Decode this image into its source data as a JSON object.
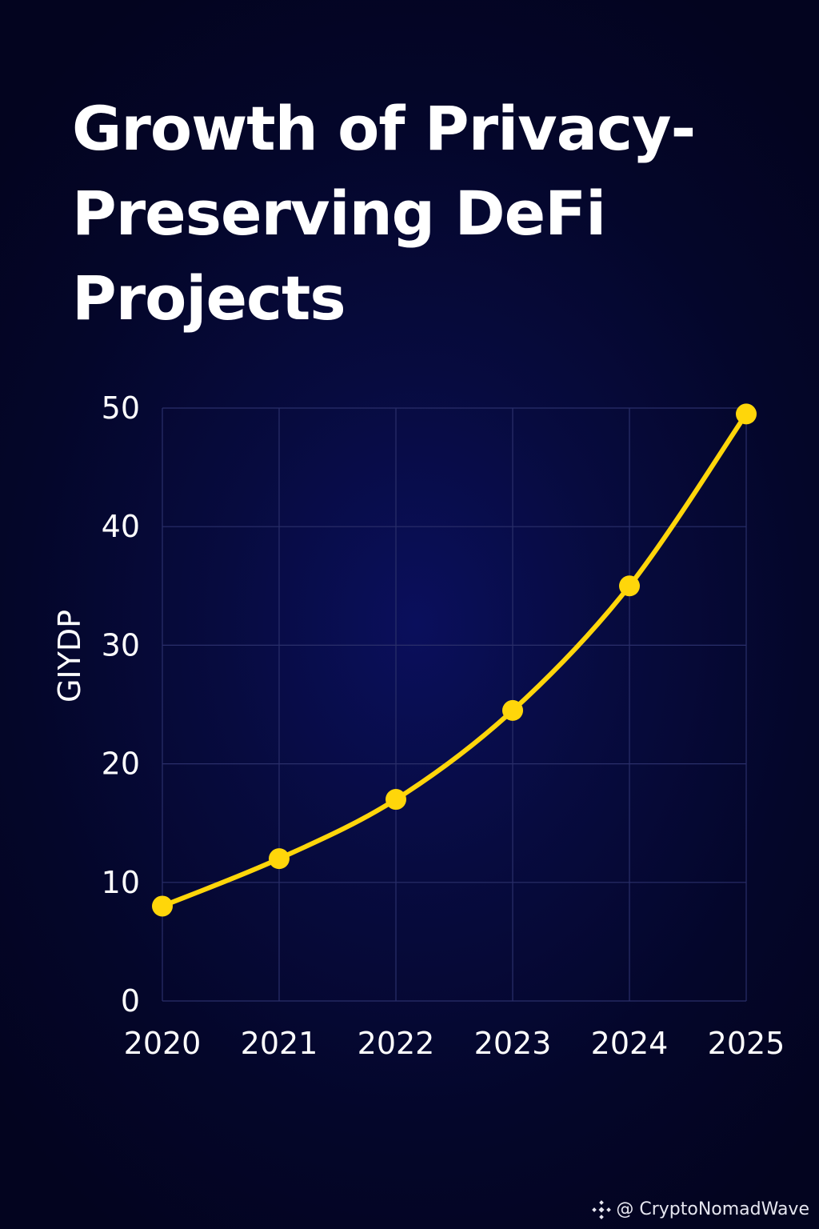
{
  "chart_data": {
    "type": "line",
    "title": "Growth of Privacy-Preserving DeFi Projects",
    "ylabel": "GIΥDP",
    "x": [
      "2020",
      "2021",
      "2022",
      "2023",
      "2024",
      "2025"
    ],
    "series": [
      {
        "values": [
          8,
          12,
          17,
          24.5,
          35,
          49.5
        ]
      }
    ],
    "yticks": [
      "0",
      "10",
      "20",
      "30",
      "40",
      "50"
    ],
    "ylim": [
      0,
      50
    ],
    "grid": true,
    "legend": "none"
  },
  "colors": {
    "line": "#ffd60a",
    "grid": "#2a2f6a"
  },
  "watermark": {
    "icon": "binance-logo-icon",
    "text": "@ CryptoNomadWave"
  }
}
